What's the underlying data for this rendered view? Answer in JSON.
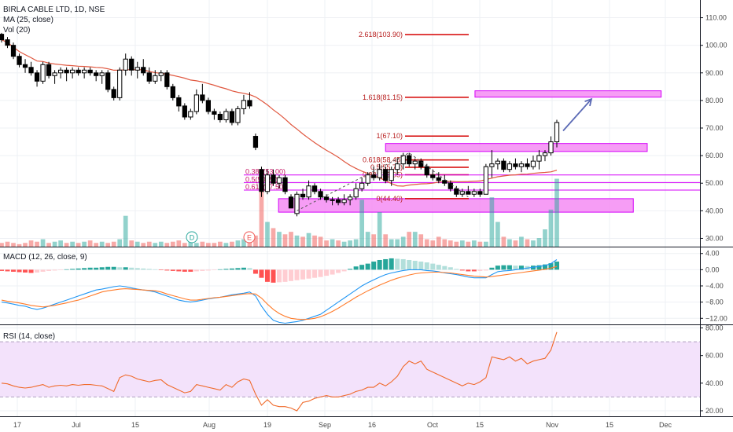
{
  "legend": {
    "title": "BIRLA CABLE LTD, 1D, NSE",
    "ma": "MA (25, close)",
    "vol": "Vol (20)"
  },
  "macd_label": "MACD (12, 26, close, 9)",
  "rsi_label": "RSI (14, close)",
  "markers": {
    "d": "D",
    "e": "E"
  },
  "colors": {
    "up": "#26a69a",
    "down": "#ef5350",
    "candle": "#000000",
    "ma": "#e0573f",
    "macd": "#2196f3",
    "signal": "#ff7b2a",
    "rsi": "#f06a2a",
    "fib": "#d50000",
    "zone_fill": "#f48cf3",
    "zone_stroke": "#d500f9",
    "rsi_band": "#f3e2fb",
    "arrow": "#5b6ab5"
  },
  "chart_data": [
    {
      "type": "candlestick",
      "panel": "price",
      "yticks": [
        30,
        40,
        50,
        60,
        70,
        80,
        90,
        100,
        110
      ],
      "ytick_labels": [
        "30.00",
        "40.00",
        "50.00",
        "60.00",
        "70.00",
        "80.00",
        "90.00",
        "100.00",
        "110.00"
      ],
      "ylim": [
        27,
        115
      ],
      "x_labels": [
        "17",
        "Jul",
        "15",
        "Aug",
        "19",
        "Sep",
        "16",
        "Oct",
        "15",
        "Nov",
        "15",
        "Dec"
      ],
      "ohlc": [
        [
          104,
          104.5,
          101,
          102
        ],
        [
          102,
          103,
          99,
          100
        ],
        [
          100,
          101,
          95,
          96
        ],
        [
          96,
          97,
          92,
          93
        ],
        [
          93,
          95,
          90,
          92
        ],
        [
          92,
          94,
          89,
          90
        ],
        [
          90,
          91,
          85,
          87
        ],
        [
          87,
          94,
          86,
          93
        ],
        [
          93,
          94,
          88,
          89
        ],
        [
          89,
          91,
          86,
          90
        ],
        [
          90,
          92,
          88,
          91
        ],
        [
          91,
          92,
          87,
          90
        ],
        [
          90,
          92,
          88,
          91
        ],
        [
          91,
          92,
          89,
          90
        ],
        [
          90,
          92,
          88,
          91
        ],
        [
          91,
          92,
          89,
          90
        ],
        [
          90,
          91,
          87,
          89
        ],
        [
          89,
          91,
          86,
          90
        ],
        [
          90,
          91,
          83,
          84
        ],
        [
          84,
          85,
          80,
          81
        ],
        [
          81,
          92,
          80,
          91
        ],
        [
          91,
          97,
          89,
          95
        ],
        [
          95,
          96,
          89,
          91
        ],
        [
          91,
          94,
          88,
          92
        ],
        [
          92,
          95,
          89,
          90
        ],
        [
          90,
          92,
          86,
          87
        ],
        [
          87,
          91,
          86,
          89
        ],
        [
          89,
          91,
          87,
          90
        ],
        [
          90,
          91,
          84,
          85
        ],
        [
          85,
          86,
          80,
          81
        ],
        [
          81,
          82,
          76,
          78
        ],
        [
          78,
          79,
          73,
          74
        ],
        [
          74,
          77,
          73,
          76
        ],
        [
          76,
          84,
          75,
          82
        ],
        [
          82,
          86,
          79,
          80
        ],
        [
          80,
          81,
          75,
          76
        ],
        [
          76,
          77,
          73,
          75
        ],
        [
          75,
          76,
          72,
          73
        ],
        [
          73,
          77,
          72,
          76
        ],
        [
          76,
          77,
          71,
          72
        ],
        [
          72,
          78,
          71,
          77
        ],
        [
          77,
          82,
          75,
          80
        ],
        [
          80,
          83,
          77,
          78
        ],
        [
          67,
          68,
          62,
          63
        ],
        [
          55,
          56,
          45,
          47
        ],
        [
          47,
          55,
          46,
          53
        ],
        [
          53,
          55,
          49,
          50
        ],
        [
          50,
          53,
          48,
          52
        ],
        [
          52,
          53,
          46,
          47
        ],
        [
          45,
          46,
          41,
          41
        ],
        [
          39,
          47,
          38,
          46
        ],
        [
          46,
          48,
          44,
          45
        ],
        [
          45,
          51,
          44,
          49
        ],
        [
          49,
          50,
          46,
          47
        ],
        [
          47,
          48,
          44,
          45
        ],
        [
          45,
          46,
          43,
          44
        ],
        [
          44,
          45,
          42,
          44
        ],
        [
          44,
          45,
          42,
          43
        ],
        [
          43,
          46,
          42,
          44
        ],
        [
          44,
          46,
          42,
          45
        ],
        [
          45,
          50,
          44,
          48
        ],
        [
          48,
          52,
          47,
          50
        ],
        [
          50,
          54,
          49,
          53
        ],
        [
          53,
          56,
          51,
          52
        ],
        [
          52,
          57,
          51,
          55
        ],
        [
          55,
          56,
          50,
          51
        ],
        [
          51,
          56,
          49,
          55
        ],
        [
          55,
          59,
          53,
          57
        ],
        [
          57,
          61,
          55,
          60
        ],
        [
          60,
          61,
          56,
          57
        ],
        [
          57,
          59,
          55,
          58
        ],
        [
          58,
          59,
          55,
          56
        ],
        [
          56,
          57,
          52,
          53
        ],
        [
          53,
          55,
          51,
          52
        ],
        [
          52,
          54,
          50,
          51
        ],
        [
          51,
          53,
          49,
          50
        ],
        [
          50,
          51,
          47,
          48
        ],
        [
          48,
          49,
          45,
          46
        ],
        [
          46,
          48,
          45,
          47
        ],
        [
          47,
          49,
          46,
          46
        ],
        [
          46,
          48,
          45,
          47
        ],
        [
          47,
          48,
          45,
          46
        ],
        [
          46,
          57,
          46,
          56
        ],
        [
          56,
          62,
          52,
          57
        ],
        [
          57,
          59,
          55,
          58
        ],
        [
          58,
          59,
          54,
          55
        ],
        [
          55,
          58,
          54,
          57
        ],
        [
          57,
          59,
          55,
          56
        ],
        [
          56,
          58,
          54,
          57
        ],
        [
          57,
          59,
          55,
          56
        ],
        [
          56,
          60,
          55,
          58
        ],
        [
          58,
          62,
          55,
          60
        ],
        [
          60,
          62,
          58,
          61
        ],
        [
          61,
          67,
          60,
          65
        ],
        [
          65,
          73,
          63,
          72
        ]
      ],
      "ma_label": "MA (25, close)",
      "volume": [
        3,
        4,
        3,
        2,
        3,
        5,
        4,
        6,
        3,
        4,
        5,
        3,
        4,
        3,
        4,
        5,
        3,
        4,
        3,
        4,
        6,
        25,
        5,
        4,
        3,
        4,
        3,
        4,
        3,
        4,
        5,
        3,
        4,
        3,
        4,
        3,
        3,
        4,
        3,
        4,
        5,
        6,
        7,
        9,
        48,
        20,
        15,
        12,
        10,
        12,
        9,
        8,
        11,
        9,
        8,
        5,
        6,
        5,
        4,
        5,
        6,
        38,
        12,
        10,
        28,
        10,
        6,
        6,
        8,
        12,
        12,
        10,
        6,
        5,
        8,
        6,
        5,
        4,
        5,
        4,
        5,
        4,
        4,
        40,
        20,
        8,
        6,
        5,
        8,
        6,
        5,
        7,
        14,
        30,
        55
      ],
      "fib_levels": [
        {
          "label": "2.618(103.90)",
          "value": 103.9
        },
        {
          "label": "1.618(81.15)",
          "value": 81.15
        },
        {
          "label": "1(67.10)",
          "value": 67.1
        },
        {
          "label": "0.618(58.45)",
          "value": 58.45
        },
        {
          "label": "0.5(55.75)",
          "value": 55.75
        },
        {
          "label": "0.382(53.05)",
          "value": 53.05
        },
        {
          "label": "0(44.40)",
          "value": 44.4
        }
      ],
      "retrace_labels": [
        {
          "label": "0.382(53.00)",
          "value": 53.0
        },
        {
          "label": "0.5(50.25)",
          "value": 50.25
        },
        {
          "label": "0.618(47.50)",
          "value": 47.5
        }
      ],
      "zones": [
        {
          "from": 64.4,
          "to": 61.5,
          "x_from": 0.526,
          "x_to": 0.883
        },
        {
          "from": 44.4,
          "to": 39.5,
          "x_from": 0.38,
          "x_to": 0.864
        },
        {
          "from": 83.5,
          "to": 81.2,
          "x_from": 0.648,
          "x_to": 0.902
        }
      ]
    },
    {
      "type": "bar+line",
      "panel": "macd",
      "title": "MACD (12, 26, close, 9)",
      "yticks": [
        4,
        0,
        -4,
        -8,
        -12
      ],
      "ytick_labels": [
        "4.00",
        "0.00",
        "−4.00",
        "−8.00",
        "−12.00"
      ],
      "ylim": [
        -13.5,
        5.5
      ],
      "histogram": [
        -0.3,
        -0.4,
        -0.5,
        -0.6,
        -0.7,
        -0.8,
        -0.7,
        -0.5,
        -0.3,
        -0.2,
        -0.1,
        0.1,
        0.2,
        0.3,
        0.4,
        0.5,
        0.5,
        0.6,
        0.7,
        0.7,
        0.6,
        0.6,
        0.5,
        0.4,
        0.3,
        0.2,
        0.1,
        -0.1,
        -0.2,
        -0.3,
        -0.4,
        -0.5,
        -0.5,
        -0.4,
        -0.3,
        -0.2,
        -0.1,
        0.1,
        0.2,
        0.3,
        0.4,
        0.5,
        0.4,
        -1.0,
        -2.0,
        -3.0,
        -3.2,
        -3.1,
        -3.0,
        -2.8,
        -2.6,
        -2.4,
        -2.2,
        -2.0,
        -1.8,
        -1.5,
        -1.2,
        -0.8,
        -0.4,
        0.2,
        0.8,
        1.2,
        1.5,
        2.0,
        2.4,
        2.6,
        2.8,
        2.7,
        2.6,
        2.4,
        2.2,
        2.0,
        1.8,
        1.5,
        1.2,
        0.9,
        0.6,
        0.2,
        -0.2,
        -0.4,
        -0.4,
        -0.3,
        -0.2,
        0.5,
        1.0,
        1.1,
        1.1,
        1.0,
        1.0,
        0.9,
        1.0,
        1.1,
        1.3,
        1.6,
        2.0
      ],
      "macd": [
        -8.0,
        -8.2,
        -8.5,
        -8.8,
        -9.0,
        -9.5,
        -9.8,
        -9.5,
        -9.0,
        -8.5,
        -8.0,
        -7.5,
        -7.0,
        -6.5,
        -6.0,
        -5.5,
        -5.0,
        -4.8,
        -4.5,
        -4.2,
        -4.0,
        -4.2,
        -4.5,
        -4.8,
        -5.0,
        -5.2,
        -5.5,
        -6.0,
        -6.5,
        -7.0,
        -7.5,
        -7.8,
        -8.0,
        -7.8,
        -7.5,
        -7.2,
        -7.0,
        -6.8,
        -6.5,
        -6.2,
        -6.0,
        -5.8,
        -5.5,
        -6.5,
        -9.0,
        -11.0,
        -12.5,
        -13.0,
        -13.2,
        -13.0,
        -12.8,
        -12.5,
        -12.0,
        -11.5,
        -11.0,
        -10.0,
        -9.0,
        -8.0,
        -7.0,
        -6.0,
        -5.0,
        -4.0,
        -3.2,
        -2.5,
        -1.8,
        -1.2,
        -0.8,
        -0.5,
        -0.2,
        0,
        0,
        0,
        -0.2,
        -0.3,
        -0.5,
        -0.8,
        -1.0,
        -1.2,
        -1.5,
        -1.8,
        -2.0,
        -2.0,
        -2.0,
        -1.2,
        -0.5,
        -0.3,
        -0.2,
        0,
        0.2,
        0.4,
        0.6,
        0.8,
        1.0,
        1.5,
        2.5
      ],
      "signal": [
        -7.5,
        -7.8,
        -8.0,
        -8.2,
        -8.5,
        -8.8,
        -9.0,
        -9.2,
        -9.0,
        -8.8,
        -8.5,
        -8.2,
        -7.8,
        -7.5,
        -7.0,
        -6.5,
        -6.0,
        -5.5,
        -5.2,
        -5.0,
        -4.8,
        -4.7,
        -4.8,
        -4.9,
        -5.0,
        -5.1,
        -5.2,
        -5.5,
        -6.0,
        -6.4,
        -6.8,
        -7.2,
        -7.5,
        -7.5,
        -7.3,
        -7.1,
        -6.9,
        -6.8,
        -6.6,
        -6.4,
        -6.2,
        -6.0,
        -5.9,
        -6.0,
        -7.0,
        -8.5,
        -9.8,
        -10.8,
        -11.5,
        -12.0,
        -12.2,
        -12.3,
        -12.2,
        -12.0,
        -11.6,
        -11.0,
        -10.3,
        -9.5,
        -8.6,
        -7.7,
        -6.8,
        -6.0,
        -5.2,
        -4.5,
        -3.8,
        -3.2,
        -2.6,
        -2.1,
        -1.7,
        -1.3,
        -1.0,
        -0.8,
        -0.7,
        -0.6,
        -0.6,
        -0.7,
        -0.8,
        -1.0,
        -1.2,
        -1.4,
        -1.6,
        -1.7,
        -1.8,
        -1.7,
        -1.5,
        -1.3,
        -1.1,
        -0.9,
        -0.7,
        -0.5,
        -0.3,
        -0.1,
        0.1,
        0.4,
        0.8
      ]
    },
    {
      "type": "line",
      "panel": "rsi",
      "title": "RSI (14, close)",
      "yticks": [
        80,
        60,
        40,
        20
      ],
      "ytick_labels": [
        "80.00",
        "60.00",
        "40.00",
        "20.00"
      ],
      "ylim": [
        16,
        82
      ],
      "band": [
        30,
        70
      ],
      "values": [
        40,
        39.5,
        38,
        37,
        36.5,
        37,
        38,
        39,
        37,
        38,
        38.5,
        38,
        39,
        38.5,
        39,
        39,
        38.5,
        38,
        36,
        34,
        44,
        46,
        45,
        43,
        42,
        41,
        42,
        42.5,
        39,
        37,
        35,
        33,
        34,
        39,
        38,
        37,
        36,
        35,
        39,
        37,
        41,
        43,
        42,
        32,
        24,
        28,
        24,
        23,
        23,
        22,
        20,
        26,
        27,
        29,
        30,
        31,
        30,
        30,
        31,
        32,
        34,
        35,
        37,
        37,
        40,
        38,
        41,
        45,
        52,
        56,
        54,
        56,
        50,
        48,
        46,
        44,
        42,
        40,
        38,
        40,
        39,
        41,
        44,
        59,
        58,
        57,
        59,
        56,
        58,
        54,
        56,
        57,
        58,
        64,
        77
      ]
    }
  ]
}
